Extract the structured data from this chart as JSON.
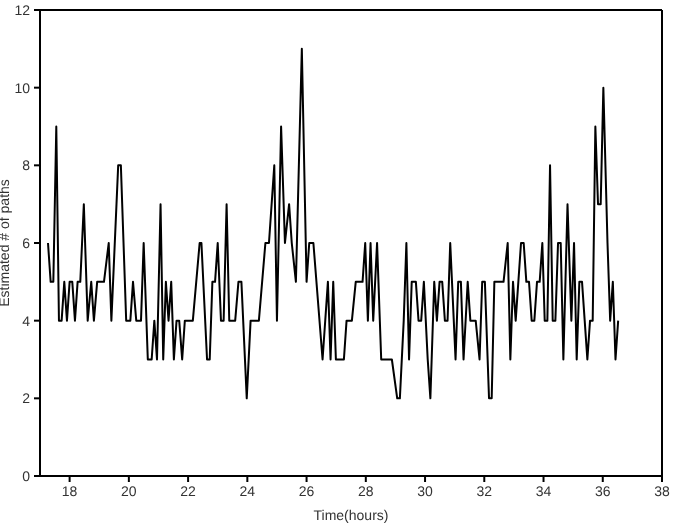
{
  "chart_data": {
    "type": "line",
    "xlabel": "Time(hours)",
    "ylabel": "Estimated # of paths",
    "xlim": [
      17,
      38
    ],
    "xticks": [
      18,
      20,
      22,
      24,
      26,
      28,
      30,
      32,
      34,
      36,
      38
    ],
    "ylim": [
      0,
      12
    ],
    "yticks": [
      0,
      2,
      4,
      6,
      8,
      10,
      12
    ],
    "grid": false,
    "legend": false,
    "marker": "none",
    "line_style": "solid",
    "x": [
      17.27,
      17.36,
      17.45,
      17.55,
      17.64,
      17.73,
      17.82,
      17.91,
      18.0,
      18.09,
      18.18,
      18.27,
      18.36,
      18.48,
      18.61,
      18.73,
      18.82,
      18.93,
      19.16,
      19.32,
      19.41,
      19.64,
      19.73,
      19.91,
      20.05,
      20.14,
      20.25,
      20.41,
      20.5,
      20.64,
      20.77,
      20.86,
      20.95,
      21.07,
      21.16,
      21.25,
      21.34,
      21.43,
      21.52,
      21.61,
      21.7,
      21.8,
      21.89,
      22.16,
      22.39,
      22.45,
      22.64,
      22.73,
      22.82,
      22.91,
      23.0,
      23.11,
      23.2,
      23.3,
      23.39,
      23.59,
      23.7,
      23.8,
      23.98,
      24.11,
      24.39,
      24.61,
      24.73,
      24.91,
      25.0,
      25.14,
      25.27,
      25.41,
      25.5,
      25.64,
      25.84,
      26.0,
      26.09,
      26.23,
      26.54,
      26.72,
      26.81,
      26.9,
      26.99,
      27.08,
      27.26,
      27.35,
      27.53,
      27.66,
      27.89,
      27.98,
      28.07,
      28.16,
      28.25,
      28.38,
      28.52,
      28.88,
      29.06,
      29.15,
      29.28,
      29.37,
      29.46,
      29.55,
      29.69,
      29.78,
      29.87,
      29.96,
      30.09,
      30.18,
      30.31,
      30.4,
      30.49,
      30.58,
      30.67,
      30.76,
      30.85,
      31.03,
      31.12,
      31.21,
      31.3,
      31.44,
      31.53,
      31.71,
      31.84,
      31.93,
      32.02,
      32.16,
      32.25,
      32.34,
      32.65,
      32.79,
      32.88,
      32.97,
      33.06,
      33.24,
      33.33,
      33.42,
      33.51,
      33.6,
      33.69,
      33.78,
      33.87,
      33.96,
      34.04,
      34.13,
      34.22,
      34.31,
      34.4,
      34.49,
      34.58,
      34.67,
      34.81,
      34.94,
      35.03,
      35.12,
      35.21,
      35.3,
      35.39,
      35.48,
      35.57,
      35.66,
      35.75,
      35.84,
      35.93,
      36.02,
      36.16,
      36.25,
      36.34,
      36.43,
      36.52
    ],
    "series": [
      {
        "color": "#000000",
        "values": [
          6,
          5,
          5,
          9,
          4,
          4,
          5,
          4,
          5,
          5,
          4,
          5,
          5,
          7,
          4,
          5,
          4,
          5,
          5,
          6,
          4,
          8,
          8,
          4,
          4,
          5,
          4,
          4,
          6,
          3,
          3,
          4,
          3,
          7,
          3,
          5,
          4,
          5,
          3,
          4,
          4,
          3,
          4,
          4,
          6,
          6,
          3,
          3,
          5,
          5,
          6,
          4,
          4,
          7,
          4,
          4,
          5,
          5,
          2,
          4,
          4,
          6,
          6,
          8,
          4,
          9,
          6,
          7,
          6,
          5,
          11,
          5,
          6,
          6,
          3,
          5,
          3,
          5,
          3,
          3,
          3,
          4,
          4,
          5,
          5,
          6,
          4,
          6,
          4,
          6,
          3,
          3,
          2,
          2,
          4,
          6,
          3,
          5,
          5,
          4,
          4,
          5,
          3,
          2,
          5,
          4,
          5,
          5,
          4,
          4,
          6,
          3,
          5,
          5,
          3,
          5,
          4,
          4,
          3,
          5,
          5,
          2,
          2,
          5,
          5,
          6,
          3,
          5,
          4,
          6,
          6,
          5,
          5,
          4,
          4,
          5,
          5,
          6,
          4,
          4,
          8,
          4,
          4,
          6,
          6,
          3,
          7,
          4,
          6,
          3,
          5,
          5,
          4,
          3,
          4,
          4,
          9,
          7,
          7,
          10,
          6,
          4,
          5,
          3,
          4
        ]
      }
    ]
  }
}
